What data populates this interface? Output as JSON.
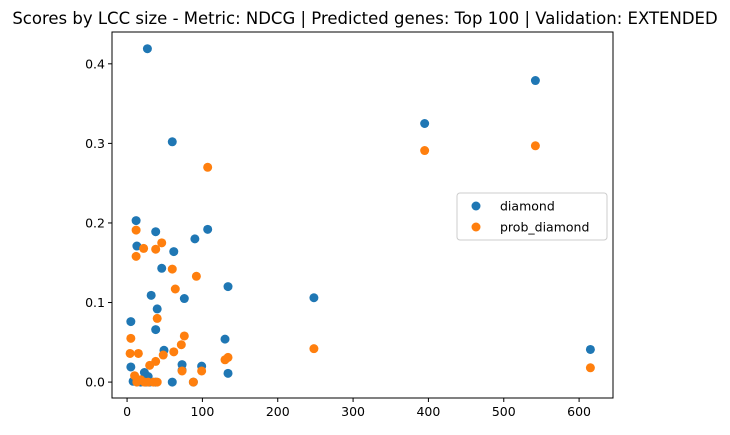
{
  "chart_data": {
    "type": "scatter",
    "title": "Scores by LCC size - Metric: NDCG | Predicted genes: Top 100 | Validation: EXTENDED",
    "xlabel": "",
    "ylabel": "",
    "xlim": [
      -20,
      645
    ],
    "ylim": [
      -0.02,
      0.44
    ],
    "xticks": [
      0,
      100,
      200,
      300,
      400,
      500,
      600
    ],
    "xtick_labels": [
      "0",
      "100",
      "200",
      "300",
      "400",
      "500",
      "600"
    ],
    "yticks": [
      0.0,
      0.1,
      0.2,
      0.3,
      0.4
    ],
    "ytick_labels": [
      "0.0",
      "0.1",
      "0.2",
      "0.3",
      "0.4"
    ],
    "grid": false,
    "legend_position": "center-right",
    "series": [
      {
        "name": "diamond",
        "color": "#1f77b4",
        "points": [
          [
            27,
            0.419
          ],
          [
            60,
            0.302
          ],
          [
            542,
            0.379
          ],
          [
            395,
            0.325
          ],
          [
            12,
            0.203
          ],
          [
            13,
            0.171
          ],
          [
            38,
            0.189
          ],
          [
            62,
            0.164
          ],
          [
            107,
            0.192
          ],
          [
            90,
            0.18
          ],
          [
            46,
            0.143
          ],
          [
            134,
            0.12
          ],
          [
            32,
            0.109
          ],
          [
            76,
            0.105
          ],
          [
            40,
            0.092
          ],
          [
            248,
            0.106
          ],
          [
            5,
            0.076
          ],
          [
            38,
            0.066
          ],
          [
            130,
            0.054
          ],
          [
            615,
            0.041
          ],
          [
            49,
            0.04
          ],
          [
            73,
            0.022
          ],
          [
            99,
            0.02
          ],
          [
            5,
            0.019
          ],
          [
            23,
            0.012
          ],
          [
            28,
            0.007
          ],
          [
            134,
            0.011
          ],
          [
            8,
            0.001
          ],
          [
            18,
            0.0
          ],
          [
            25,
            0.0
          ],
          [
            30,
            0.0
          ],
          [
            38,
            0.0
          ],
          [
            60,
            0.0
          ],
          [
            88,
            0.0
          ],
          [
            73,
            0.015
          ]
        ]
      },
      {
        "name": "prob_diamond",
        "color": "#ff7f0e",
        "points": [
          [
            107,
            0.27
          ],
          [
            395,
            0.291
          ],
          [
            542,
            0.297
          ],
          [
            12,
            0.191
          ],
          [
            22,
            0.168
          ],
          [
            12,
            0.158
          ],
          [
            38,
            0.167
          ],
          [
            46,
            0.175
          ],
          [
            60,
            0.142
          ],
          [
            92,
            0.133
          ],
          [
            64,
            0.117
          ],
          [
            40,
            0.08
          ],
          [
            76,
            0.058
          ],
          [
            5,
            0.055
          ],
          [
            248,
            0.042
          ],
          [
            72,
            0.047
          ],
          [
            62,
            0.038
          ],
          [
            48,
            0.034
          ],
          [
            15,
            0.036
          ],
          [
            4,
            0.036
          ],
          [
            134,
            0.031
          ],
          [
            130,
            0.028
          ],
          [
            38,
            0.026
          ],
          [
            30,
            0.021
          ],
          [
            615,
            0.018
          ],
          [
            99,
            0.014
          ],
          [
            73,
            0.014
          ],
          [
            10,
            0.008
          ],
          [
            18,
            0.003
          ],
          [
            23,
            0.0
          ],
          [
            28,
            0.0
          ],
          [
            35,
            0.0
          ],
          [
            40,
            0.0
          ],
          [
            88,
            0.0
          ],
          [
            13,
            0.0
          ]
        ]
      }
    ]
  }
}
